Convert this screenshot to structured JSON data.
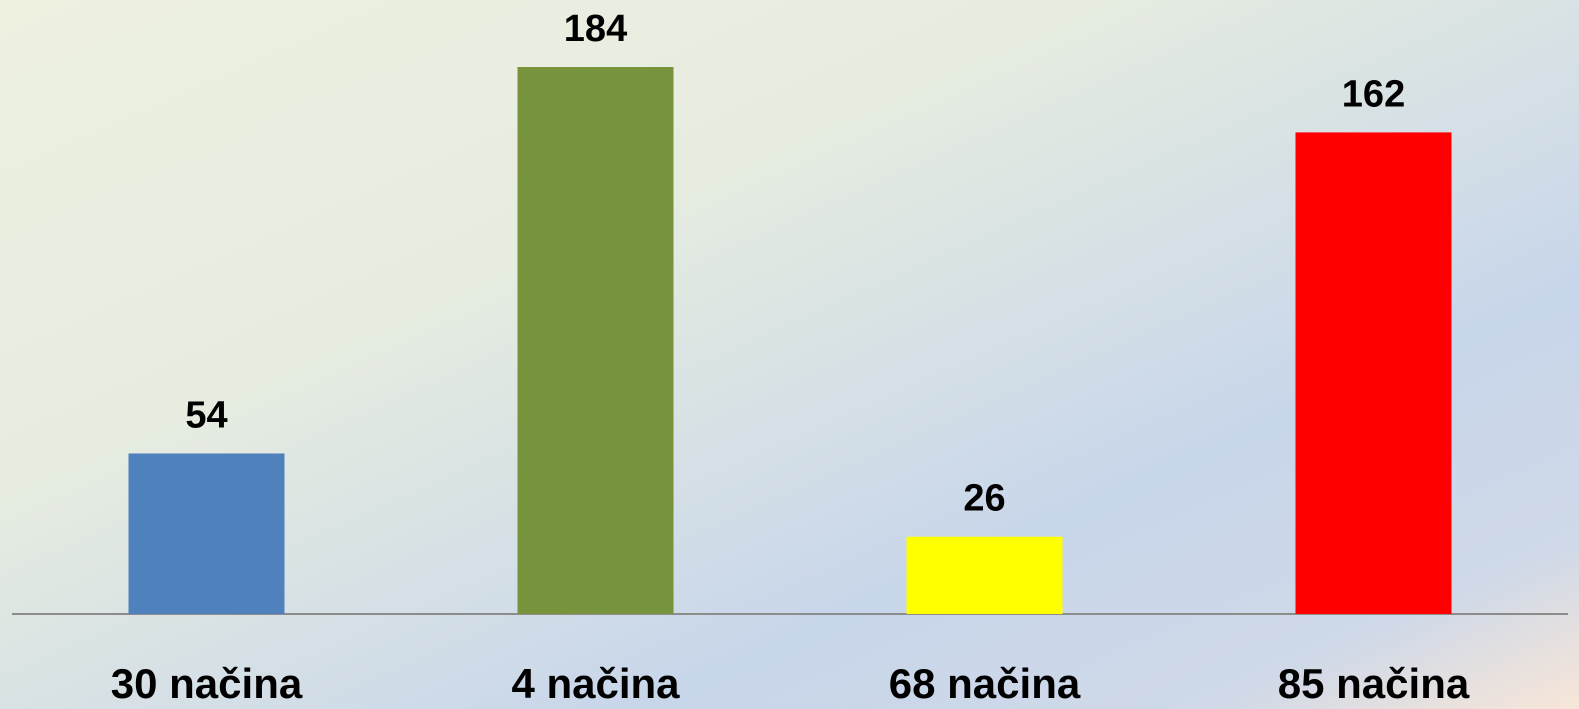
{
  "chart_data": {
    "type": "bar",
    "categories": [
      "30 načina",
      "4 načina",
      "68 načina",
      "85 načina"
    ],
    "values": [
      54,
      184,
      26,
      162
    ],
    "colors": [
      "#4f81bd",
      "#77933c",
      "#ffff00",
      "#ff0000"
    ]
  }
}
